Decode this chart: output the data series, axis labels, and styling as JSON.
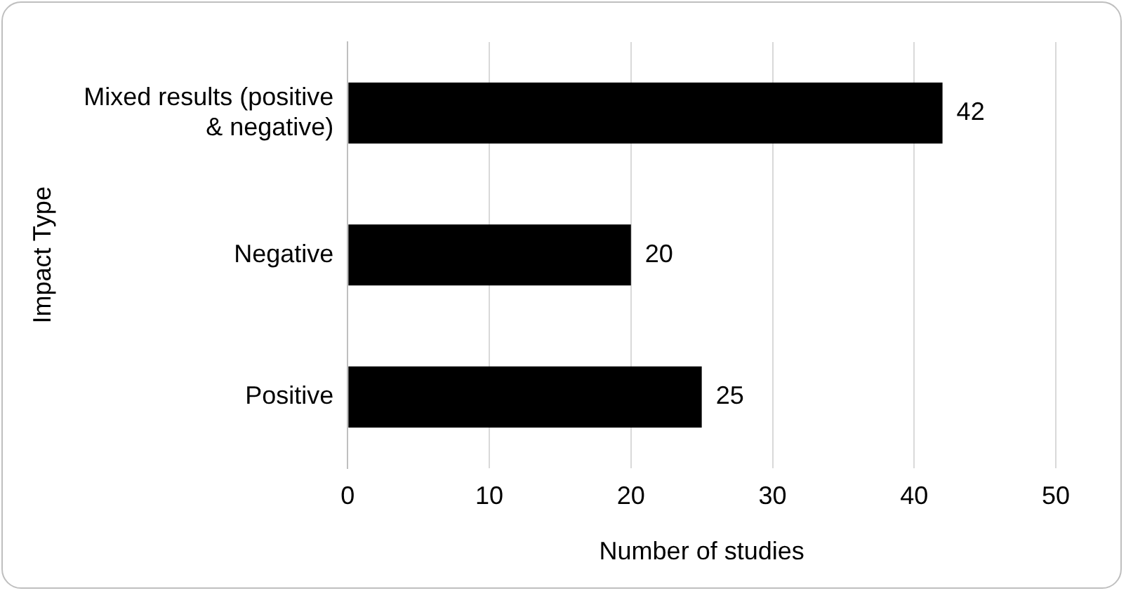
{
  "chart_data": {
    "type": "bar",
    "orientation": "horizontal",
    "xlabel": "Number of studies",
    "ylabel": "Impact Type",
    "categories": [
      "Mixed results (positive & negative)",
      "Negative",
      "Positive"
    ],
    "values": [
      42,
      20,
      25
    ],
    "color": "#000000",
    "xlim": [
      0,
      50
    ],
    "xticks": [
      0,
      10,
      20,
      30,
      40,
      50
    ],
    "grid": "x",
    "legend": false,
    "data_labels": true
  }
}
